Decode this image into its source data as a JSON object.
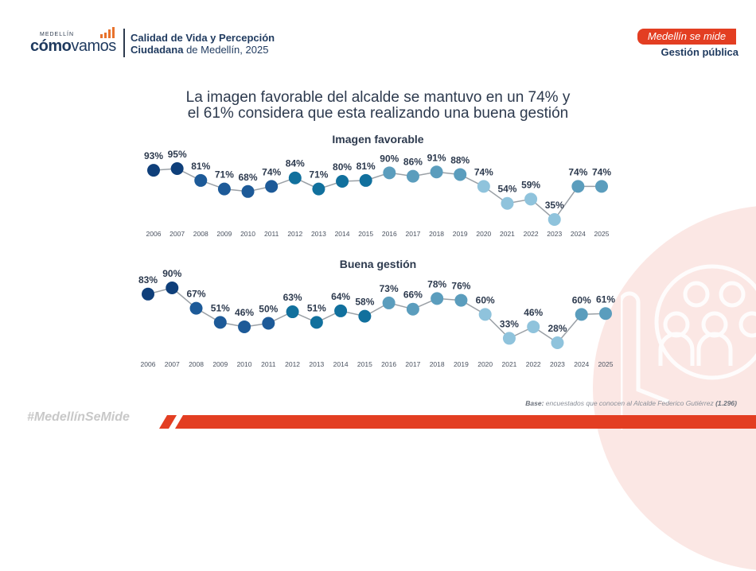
{
  "header": {
    "logo_small": "MEDELLÍN",
    "logo_bold": "cómo",
    "logo_light": "vamos",
    "title_line1": "Calidad de Vida y Percepción",
    "title_line2_bold": "Ciudadana",
    "title_line2_rest": " de Medellín, 2025",
    "tag": "Medellín se mide",
    "section": "Gestión pública"
  },
  "headline": {
    "line1": "La imagen favorable del alcalde se mantuvo en un 74% y",
    "line2": "el 61% considera que esta realizando una buena gestión"
  },
  "colors": {
    "accent": "#e33e22",
    "dark_blue": "#0f3f7a",
    "mid_blue": "#1d5a98",
    "teal": "#11709d",
    "steel": "#5b9dbd",
    "light": "#8fc3dc",
    "line": "#9aa0a6",
    "label": "#2d3a4e"
  },
  "chart_data": [
    {
      "type": "line",
      "title": "Imagen favorable",
      "xlabel": "",
      "ylabel": "",
      "x": [
        "2006",
        "2007",
        "2008",
        "2009",
        "2010",
        "2011",
        "2012",
        "2013",
        "2014",
        "2015",
        "2016",
        "2017",
        "2018",
        "2019",
        "2020",
        "2021",
        "2022",
        "2023",
        "2024",
        "2025"
      ],
      "values": [
        93,
        95,
        81,
        71,
        68,
        74,
        84,
        71,
        80,
        81,
        90,
        86,
        91,
        88,
        74,
        54,
        59,
        35,
        74,
        74
      ],
      "labels": [
        "93%",
        "95%",
        "81%",
        "71%",
        "68%",
        "74%",
        "84%",
        "71%",
        "80%",
        "81%",
        "90%",
        "86%",
        "91%",
        "88%",
        "74%",
        "54%",
        "59%",
        "35%",
        "74%",
        "74%"
      ],
      "point_colors": [
        "dark_blue",
        "dark_blue",
        "mid_blue",
        "mid_blue",
        "mid_blue",
        "mid_blue",
        "teal",
        "teal",
        "teal",
        "teal",
        "steel",
        "steel",
        "steel",
        "steel",
        "light",
        "light",
        "light",
        "light",
        "steel",
        "steel"
      ],
      "grid": false,
      "legend": "none"
    },
    {
      "type": "line",
      "title": "Buena gestión",
      "xlabel": "",
      "ylabel": "",
      "x": [
        "2006",
        "2007",
        "2008",
        "2009",
        "2010",
        "2011",
        "2012",
        "2013",
        "2014",
        "2015",
        "2016",
        "2017",
        "2018",
        "2019",
        "2020",
        "2021",
        "2022",
        "2023",
        "2024",
        "2025"
      ],
      "values": [
        83,
        90,
        67,
        51,
        46,
        50,
        63,
        51,
        64,
        58,
        73,
        66,
        78,
        76,
        60,
        33,
        46,
        28,
        60,
        61
      ],
      "labels": [
        "83%",
        "90%",
        "67%",
        "51%",
        "46%",
        "50%",
        "63%",
        "51%",
        "64%",
        "58%",
        "73%",
        "66%",
        "78%",
        "76%",
        "60%",
        "33%",
        "46%",
        "28%",
        "60%",
        "61%"
      ],
      "point_colors": [
        "dark_blue",
        "dark_blue",
        "mid_blue",
        "mid_blue",
        "mid_blue",
        "mid_blue",
        "teal",
        "teal",
        "teal",
        "teal",
        "steel",
        "steel",
        "steel",
        "steel",
        "light",
        "light",
        "light",
        "light",
        "steel",
        "steel"
      ],
      "grid": false,
      "legend": "none"
    }
  ],
  "footer": {
    "base_label": "Base:",
    "base_text": " encuestados que conocen al Alcalde Federico Gutiérrez ",
    "base_n": "(1.296)",
    "hashtag": "#MedellínSeMide"
  }
}
